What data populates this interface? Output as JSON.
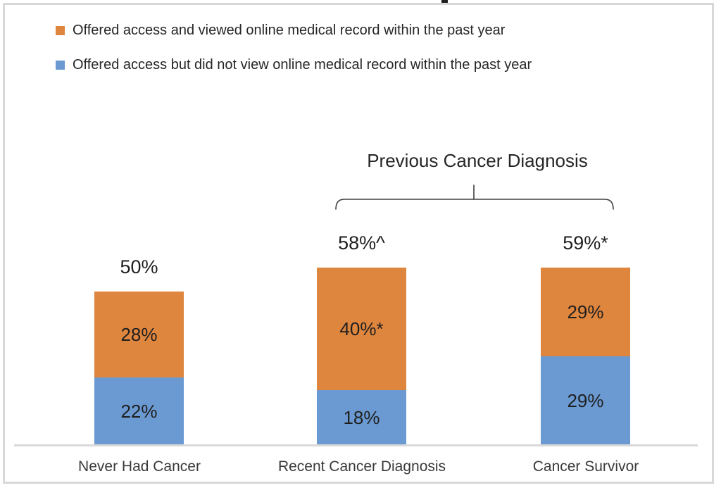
{
  "figure": {
    "background": "#FFFFFF",
    "frame_border_color": "#D8D8D8",
    "axis_line_color": "#D9D9D9",
    "label_color": "#1F1F1F"
  },
  "legend": {
    "items": [
      {
        "label": "Offered access and viewed online medical record within the past year",
        "color": "#DF863E",
        "icon": "orange-square"
      },
      {
        "label": "Offered access but did not view online medical record within the past year",
        "color": "#6B9AD2",
        "icon": "blue-square"
      }
    ]
  },
  "annotation": {
    "label": "Previous Cancer Diagnosis",
    "covers": [
      "Recent Cancer Diagnosis",
      "Cancer Survivor"
    ]
  },
  "chart_data": {
    "type": "bar",
    "stacked": true,
    "orientation": "vertical",
    "categories": [
      "Never Had Cancer",
      "Recent Cancer Diagnosis",
      "Cancer Survivor"
    ],
    "series": [
      {
        "name": "Offered access but did not view online medical record within the past year",
        "color": "#6B9AD2",
        "values": [
          22,
          18,
          29
        ],
        "data_labels": [
          "22%",
          "18%",
          "29%"
        ],
        "stack_position": "bottom"
      },
      {
        "name": "Offered access and viewed online medical record within the past year",
        "color": "#DF863E",
        "values": [
          28,
          40,
          29
        ],
        "data_labels": [
          "28%",
          "40%*",
          "29%"
        ],
        "stack_position": "top"
      }
    ],
    "totals": [
      50,
      58,
      59
    ],
    "total_labels": [
      "50%",
      "58%^",
      "59%*"
    ],
    "ylim": [
      0,
      100
    ],
    "grid": false,
    "y_axis_visible": false,
    "legend_position": "top-left",
    "bracket_annotation": "Previous Cancer Diagnosis"
  }
}
